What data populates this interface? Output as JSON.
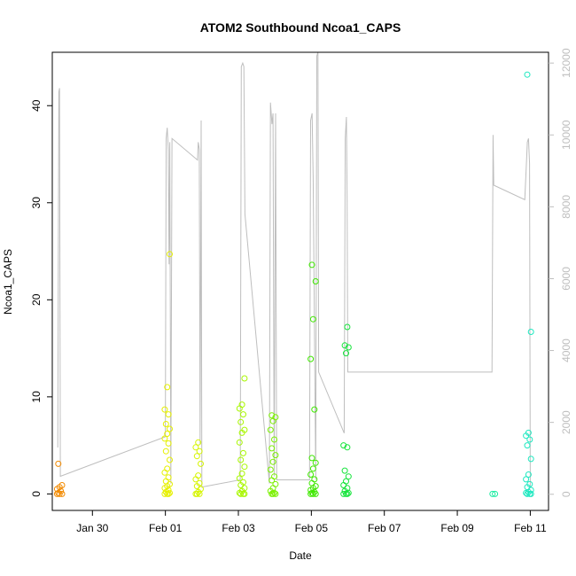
{
  "chart_data": {
    "type": "scatter",
    "title": "ATOM2 Southbound Ncoa1_CAPS",
    "xlabel": "Date",
    "ylabel": "Ncoa1_CAPS",
    "x_ticks": [
      "Jan 30",
      "Feb 01",
      "Feb 03",
      "Feb 05",
      "Feb 07",
      "Feb 09",
      "Feb 11"
    ],
    "x_tick_days": [
      30,
      32,
      34,
      36,
      38,
      40,
      42
    ],
    "xlim_days": [
      28.9,
      42.5
    ],
    "ylim": [
      -1.7,
      45.5
    ],
    "y_ticks": [
      0,
      10,
      20,
      30,
      40
    ],
    "y2lim": [
      -450,
      12300
    ],
    "y2_ticks": [
      0,
      2000,
      4000,
      6000,
      8000,
      10000,
      12000
    ],
    "y2_color": "#bebebe",
    "line_color": "#bebebe",
    "grid": false,
    "point_series": [
      {
        "day": 29.1,
        "color": "#f28a00",
        "values": [
          0,
          0,
          0,
          0.1,
          0.3,
          0.5,
          0.7,
          0.9,
          3.1
        ]
      },
      {
        "day": 32.05,
        "color": "#e6f000",
        "values": [
          0,
          0,
          0,
          0.1,
          0.2,
          0.4,
          0.6,
          0.8,
          1.0,
          1.3,
          1.7,
          2.2,
          2.6,
          3.5,
          4.4,
          5.2,
          5.7,
          6.2,
          6.7,
          7.2,
          8.2,
          8.7,
          11.0,
          24.7
        ]
      },
      {
        "day": 32.9,
        "color": "#d6f500",
        "values": [
          0,
          0,
          0,
          0.2,
          0.5,
          0.8,
          1.1,
          1.5,
          1.9,
          3.1,
          3.9,
          4.4,
          4.8,
          5.3
        ]
      },
      {
        "day": 34.1,
        "color": "#a8f700",
        "values": [
          0,
          0,
          0,
          0.1,
          0.3,
          0.6,
          0.9,
          1.2,
          1.6,
          2.1,
          2.8,
          3.5,
          4.2,
          5.3,
          6.3,
          6.6,
          7.4,
          8.2,
          8.8,
          9.2,
          11.9
        ]
      },
      {
        "day": 34.95,
        "color": "#7af000",
        "values": [
          0,
          0,
          0,
          0.1,
          0.3,
          0.6,
          1.0,
          1.4,
          1.8,
          2.5,
          3.3,
          4.0,
          4.7,
          5.6,
          6.6,
          7.5,
          7.9,
          8.1
        ]
      },
      {
        "day": 36.05,
        "color": "#3fe800",
        "values": [
          0,
          0,
          0,
          0.1,
          0.2,
          0.4,
          0.6,
          0.8,
          1.1,
          1.5,
          2.0,
          2.6,
          3.2,
          3.7,
          8.7,
          13.9,
          18.0,
          21.9,
          23.6
        ]
      },
      {
        "day": 36.95,
        "color": "#14e43a",
        "values": [
          0,
          0,
          0,
          0.1,
          0.3,
          0.6,
          0.9,
          1.3,
          1.8,
          2.4,
          4.8,
          5.0,
          14.5,
          15.1,
          15.3,
          17.2
        ]
      },
      {
        "day": 41.0,
        "color": "#18eca0",
        "values": [
          0,
          0
        ]
      },
      {
        "day": 41.95,
        "color": "#1ee8c0",
        "values": [
          0,
          0,
          0,
          0.1,
          0.2,
          0.4,
          0.7,
          1.0,
          1.5,
          2.0,
          3.6,
          5.0,
          5.6,
          6.0,
          6.3,
          16.7,
          43.2
        ]
      }
    ],
    "secondary_line": [
      [
        29.05,
        1300
      ],
      [
        29.08,
        11200
      ],
      [
        29.1,
        11300
      ],
      [
        29.12,
        500
      ],
      [
        32.0,
        1600
      ],
      [
        32.02,
        9900
      ],
      [
        32.05,
        10200
      ],
      [
        32.08,
        9600
      ],
      [
        32.1,
        6400
      ],
      [
        32.12,
        9800
      ],
      [
        32.15,
        300
      ],
      [
        32.18,
        9900
      ],
      [
        32.88,
        9300
      ],
      [
        32.9,
        9800
      ],
      [
        32.93,
        9600
      ],
      [
        32.95,
        1400
      ],
      [
        32.98,
        10400
      ],
      [
        33.0,
        200
      ],
      [
        34.05,
        400
      ],
      [
        34.08,
        11900
      ],
      [
        34.12,
        12000
      ],
      [
        34.15,
        11900
      ],
      [
        34.18,
        7800
      ],
      [
        34.85,
        300
      ],
      [
        34.88,
        10900
      ],
      [
        34.92,
        10300
      ],
      [
        34.95,
        10600
      ],
      [
        34.98,
        500
      ],
      [
        35.02,
        10600
      ],
      [
        35.05,
        400
      ],
      [
        35.95,
        400
      ],
      [
        35.98,
        10400
      ],
      [
        36.02,
        10600
      ],
      [
        36.05,
        8800
      ],
      [
        36.12,
        400
      ],
      [
        36.15,
        12200
      ],
      [
        36.18,
        12300
      ],
      [
        36.2,
        3400
      ],
      [
        36.9,
        1700
      ],
      [
        36.93,
        9900
      ],
      [
        36.96,
        10500
      ],
      [
        36.98,
        8300
      ],
      [
        37.0,
        3400
      ],
      [
        40.9,
        3400
      ],
      [
        40.95,
        3400
      ],
      [
        40.98,
        10000
      ],
      [
        41.0,
        8600
      ],
      [
        41.85,
        8200
      ],
      [
        41.88,
        8900
      ],
      [
        41.92,
        9800
      ],
      [
        41.95,
        9900
      ],
      [
        41.98,
        9200
      ],
      [
        42.0,
        200
      ]
    ]
  }
}
